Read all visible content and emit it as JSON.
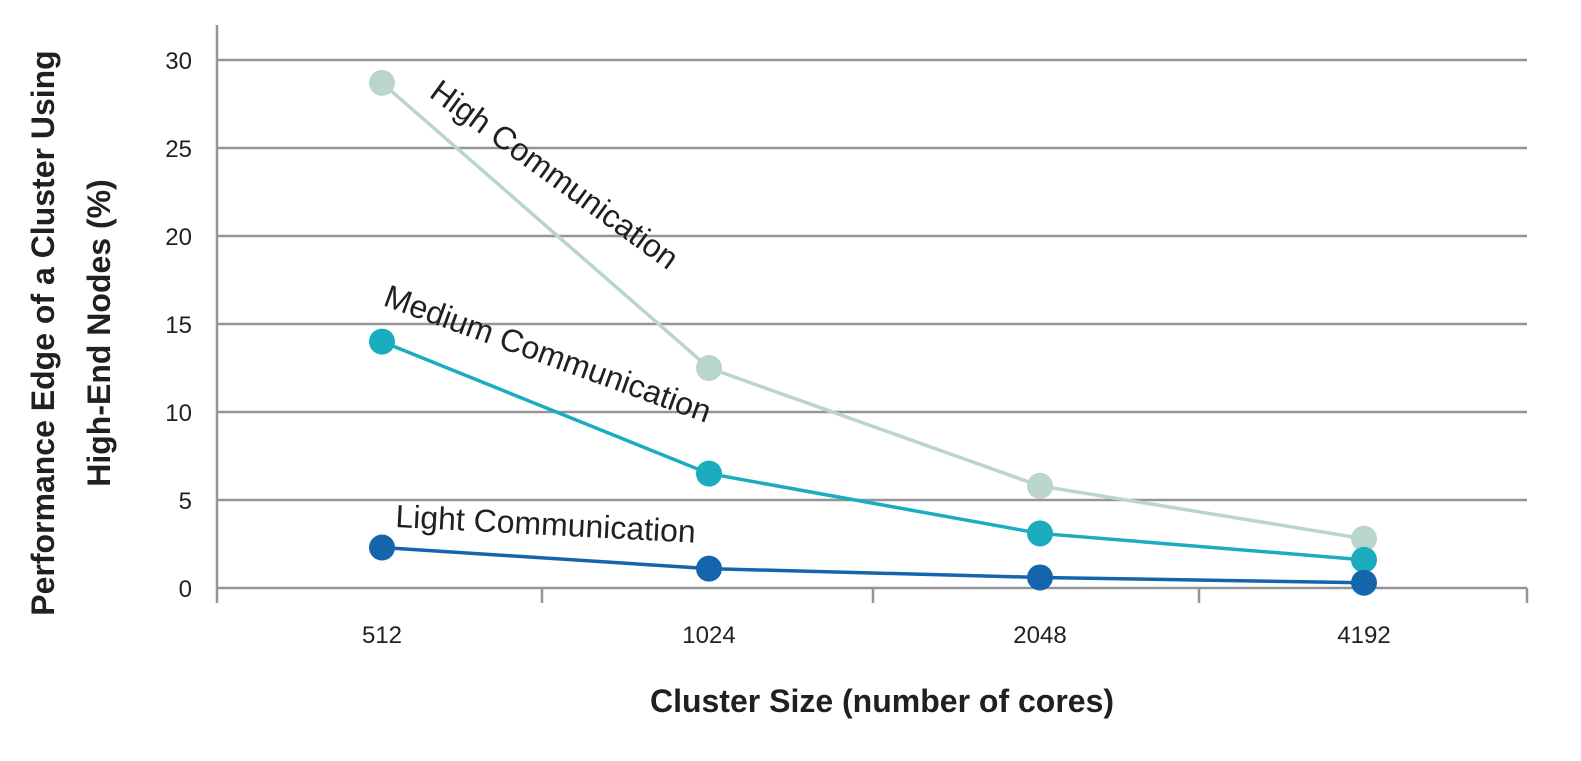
{
  "chart_data": {
    "type": "line",
    "categories": [
      "512",
      "1024",
      "2048",
      "4192"
    ],
    "xlabel": "Cluster Size (number of cores)",
    "ylabel_line1": "Performance Edge of a Cluster Using",
    "ylabel_line2": "High-End Nodes (%)",
    "ylim": [
      0,
      30
    ],
    "yticks": [
      0,
      5,
      10,
      15,
      20,
      25,
      30
    ],
    "grid": true,
    "series": [
      {
        "name": "High Communication",
        "color": "#b9d5cc",
        "values": [
          28.7,
          12.5,
          5.8,
          2.8
        ]
      },
      {
        "name": "Medium Communication",
        "color": "#1aacbf",
        "values": [
          14.0,
          6.5,
          3.1,
          1.6
        ]
      },
      {
        "name": "Light Communication",
        "color": "#1565ad",
        "values": [
          2.3,
          1.1,
          0.6,
          0.3
        ]
      }
    ]
  }
}
